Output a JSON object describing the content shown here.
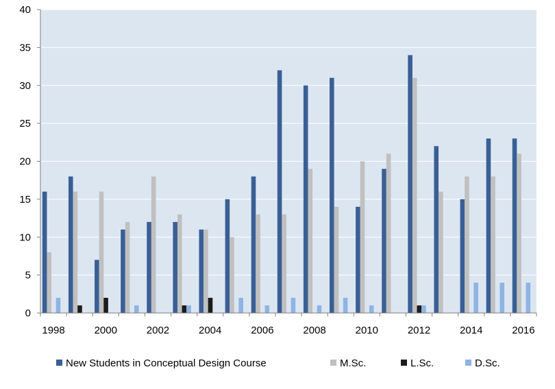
{
  "chart_data": {
    "type": "bar",
    "categories": [
      "1998",
      "1999",
      "2000",
      "2001",
      "2002",
      "2003",
      "2004",
      "2005",
      "2006",
      "2007",
      "2008",
      "2009",
      "2010",
      "2011",
      "2012",
      "2013",
      "2014",
      "2015",
      "2016"
    ],
    "x_tick_labels": [
      "1998",
      "2000",
      "2002",
      "2004",
      "2006",
      "2008",
      "2010",
      "2012",
      "2014",
      "2016"
    ],
    "y_tick_labels": [
      "0",
      "5",
      "10",
      "15",
      "20",
      "25",
      "30",
      "35",
      "40"
    ],
    "ylim": [
      0,
      40
    ],
    "grid": true,
    "legend_position": "bottom",
    "title": "",
    "xlabel": "",
    "ylabel": "",
    "series": [
      {
        "name": "New Students in Conceptual Design Course",
        "color": "#3a5f95",
        "values": [
          16,
          18,
          7,
          11,
          12,
          12,
          11,
          15,
          18,
          32,
          30,
          31,
          14,
          19,
          34,
          22,
          15,
          23,
          23
        ]
      },
      {
        "name": "M.Sc.",
        "color": "#c0c0c0",
        "values": [
          8,
          16,
          16,
          12,
          18,
          13,
          11,
          10,
          13,
          13,
          19,
          14,
          20,
          21,
          31,
          16,
          18,
          18,
          21
        ]
      },
      {
        "name": "L.Sc.",
        "color": "#1c1c1c",
        "values": [
          0,
          1,
          2,
          0,
          0,
          1,
          2,
          0,
          0,
          0,
          0,
          0,
          0,
          0,
          1,
          0,
          0,
          0,
          0
        ]
      },
      {
        "name": "D.Sc.",
        "color": "#8fb4e3",
        "values": [
          2,
          0,
          0,
          1,
          0,
          1,
          0,
          2,
          1,
          2,
          1,
          2,
          1,
          0,
          1,
          0,
          4,
          4,
          4
        ]
      }
    ]
  },
  "colors": {
    "plot_background": "#dce6f1",
    "gridline": "#ffffff",
    "axis": "#7f7f7f"
  }
}
